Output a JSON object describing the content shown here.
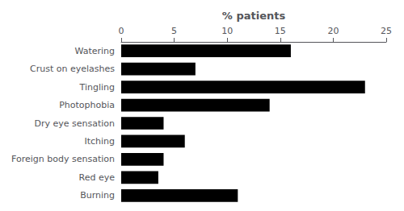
{
  "chart_data": {
    "type": "bar",
    "orientation": "horizontal",
    "categories": [
      "Burning",
      "Red eye",
      "Foreign body sensation",
      "Itching",
      "Dry eye sensation",
      "Photophobia",
      "Tingling",
      "Crust on eyelashes",
      "Watering"
    ],
    "values": [
      11,
      3.5,
      4.0,
      6.0,
      4.0,
      14.0,
      23.0,
      7.0,
      16.0
    ],
    "color": "#000000",
    "xlabel": "% patients",
    "xlim": [
      0,
      25
    ],
    "xticks": [
      0,
      5,
      10,
      15,
      20,
      25
    ],
    "grid": false
  }
}
